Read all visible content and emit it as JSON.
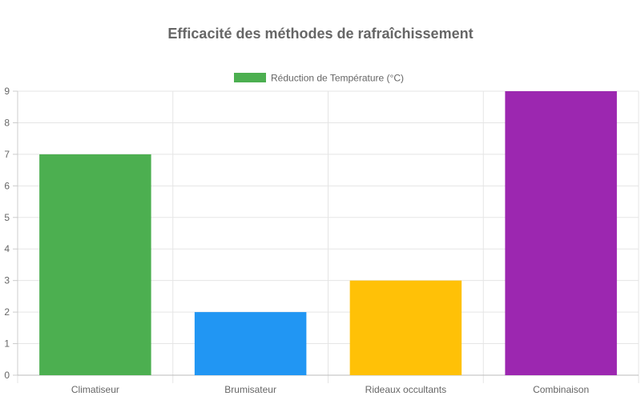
{
  "chart_data": {
    "type": "bar",
    "title": "Efficacité des méthodes de rafraîchissement",
    "categories": [
      "Climatiseur",
      "Brumisateur",
      "Rideaux occultants",
      "Combinaison"
    ],
    "series": [
      {
        "name": "Réduction de Température (°C)",
        "values": [
          7,
          2,
          3,
          9
        ]
      }
    ],
    "bar_colors": [
      "#4caf50",
      "#2196f3",
      "#ffc107",
      "#9c27b0"
    ],
    "legend_color": "#4caf50",
    "xlabel": "",
    "ylabel": "",
    "ylim": [
      0,
      9
    ],
    "yticks": [
      0,
      1,
      2,
      3,
      4,
      5,
      6,
      7,
      8,
      9
    ],
    "grid": true,
    "legend_position": "top"
  }
}
